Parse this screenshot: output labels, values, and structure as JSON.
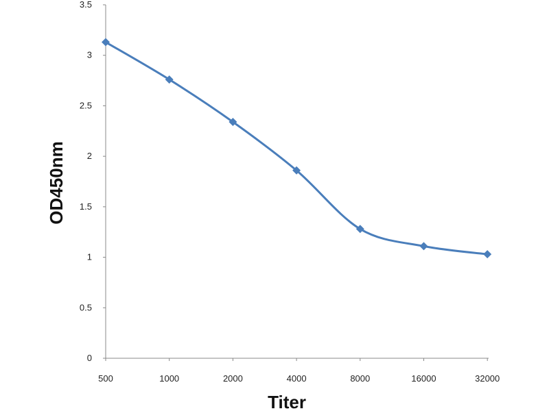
{
  "chart_data": {
    "type": "line",
    "title": "",
    "xlabel": "Titer",
    "ylabel": "OD450nm",
    "categories": [
      "500",
      "1000",
      "2000",
      "4000",
      "8000",
      "16000",
      "32000"
    ],
    "series": [
      {
        "values": [
          3.13,
          2.76,
          2.34,
          1.86,
          1.28,
          1.11,
          1.03
        ]
      }
    ],
    "ylim": [
      0,
      3.5
    ],
    "yticks": [
      "0",
      "0.5",
      "1",
      "1.5",
      "2",
      "2.5",
      "3",
      "3.5"
    ],
    "grid": false,
    "legend": "none",
    "colors": {
      "line": "#4a7ebb",
      "axis": "#888888"
    }
  }
}
